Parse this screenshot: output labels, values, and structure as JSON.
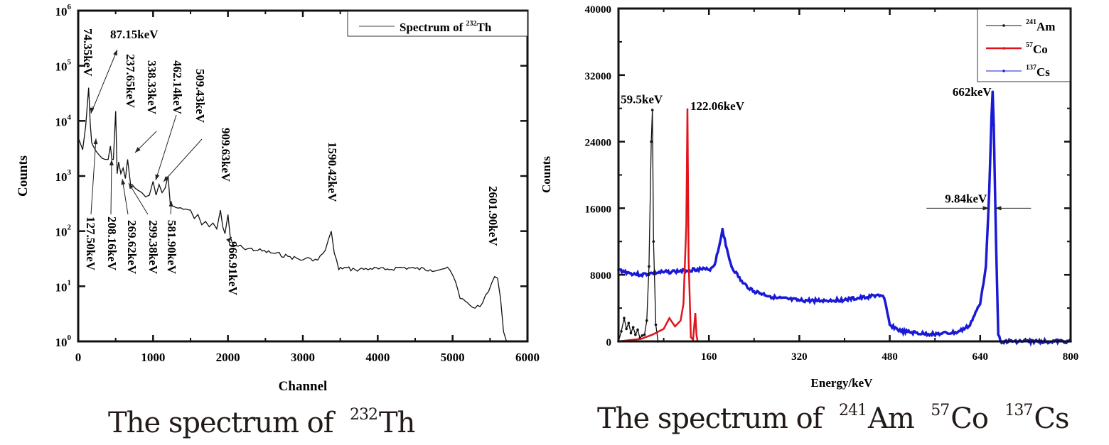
{
  "chart_data": [
    {
      "type": "line",
      "title": "Spectrum of 232Th",
      "caption": {
        "prefix": "The spectrum of",
        "isotope_mass": "232",
        "isotope_symbol": "Th"
      },
      "xlabel": "Channel",
      "ylabel": "Counts",
      "xlim": [
        0,
        6000
      ],
      "ylim": [
        1,
        1000000
      ],
      "yscale": "log",
      "grid": false,
      "xticks": [
        "0",
        "1000",
        "2000",
        "3000",
        "4000",
        "5000",
        "6000"
      ],
      "yticks": [
        {
          "base": "10",
          "exp": "0"
        },
        {
          "base": "10",
          "exp": "1"
        },
        {
          "base": "10",
          "exp": "2"
        },
        {
          "base": "10",
          "exp": "3"
        },
        {
          "base": "10",
          "exp": "4"
        },
        {
          "base": "10",
          "exp": "5"
        },
        {
          "base": "10",
          "exp": "6"
        }
      ],
      "legend": {
        "position": "top-right",
        "entries": [
          {
            "label_prefix": "Spectrum of ",
            "mass": "232",
            "symbol": "Th",
            "color": "#111111"
          }
        ]
      },
      "series": [
        {
          "name": "Spectrum of 232Th",
          "color": "#111111",
          "x": [
            0,
            60,
            100,
            140,
            160,
            180,
            200,
            240,
            280,
            320,
            360,
            400,
            430,
            450,
            470,
            500,
            520,
            540,
            570,
            600,
            630,
            660,
            700,
            720,
            760,
            800,
            850,
            900,
            950,
            1000,
            1040,
            1080,
            1120,
            1160,
            1200,
            1230,
            1250,
            1280,
            1300,
            1400,
            1500,
            1550,
            1600,
            1650,
            1700,
            1750,
            1800,
            1850,
            1900,
            1930,
            1960,
            2000,
            2030,
            2060,
            2080,
            2100,
            2200,
            2400,
            2600,
            2800,
            3000,
            3100,
            3200,
            3300,
            3380,
            3420,
            3480,
            3500,
            3700,
            3900,
            4100,
            4300,
            4500,
            4700,
            4900,
            4960,
            5040,
            5100,
            5200,
            5300,
            5400,
            5480,
            5560,
            5600,
            5640,
            5680,
            5720
          ],
          "y": [
            5000,
            3000,
            8000,
            40000,
            9000,
            4000,
            3500,
            2800,
            2400,
            2100,
            2000,
            2000,
            3500,
            2000,
            2000,
            15000,
            1100,
            1800,
            1100,
            1400,
            900,
            2000,
            700,
            700,
            600,
            550,
            500,
            420,
            450,
            800,
            450,
            700,
            500,
            600,
            1000,
            300,
            290,
            280,
            270,
            250,
            240,
            170,
            200,
            130,
            150,
            120,
            140,
            110,
            240,
            120,
            90,
            200,
            80,
            60,
            55,
            55,
            50,
            45,
            40,
            35,
            30,
            32,
            30,
            45,
            100,
            40,
            20,
            22,
            20,
            21,
            20,
            22,
            21,
            20,
            21,
            20,
            12,
            6,
            5,
            4,
            5,
            8,
            15,
            14,
            6,
            1.5,
            1
          ]
        }
      ],
      "annotations": [
        {
          "text": "74.35keV",
          "x": 150
        },
        {
          "text": "87.15keV",
          "x": 170
        },
        {
          "text": "127.50keV",
          "x": 230
        },
        {
          "text": "208.16keV",
          "x": 430
        },
        {
          "text": "237.65keV",
          "x": 500
        },
        {
          "text": "269.62keV",
          "x": 560
        },
        {
          "text": "299.38keV",
          "x": 620
        },
        {
          "text": "338.33keV",
          "x": 700
        },
        {
          "text": "462.14keV",
          "x": 980
        },
        {
          "text": "509.43keV",
          "x": 1080
        },
        {
          "text": "581.90keV",
          "x": 1220
        },
        {
          "text": "909.63keV",
          "x": 1930
        },
        {
          "text": "966.91keV",
          "x": 2060
        },
        {
          "text": "1590.42keV",
          "x": 3380
        },
        {
          "text": "2601.90keV",
          "x": 5560
        }
      ]
    },
    {
      "type": "line",
      "title": "Spectrum of 241Am 57Co 137Cs",
      "caption": {
        "prefix": "The spectrum of",
        "isotopes": [
          {
            "mass": "241",
            "symbol": "Am"
          },
          {
            "mass": "57",
            "symbol": "Co"
          },
          {
            "mass": "137",
            "symbol": "Cs"
          }
        ]
      },
      "xlabel": "Energy/keV",
      "ylabel": "Counts",
      "xlim": [
        0,
        800
      ],
      "ylim": [
        0,
        40000
      ],
      "grid": false,
      "xticks": [
        "160",
        "320",
        "480",
        "640",
        "800"
      ],
      "yticks": [
        "0",
        "8000",
        "16000",
        "24000",
        "32000",
        "40000"
      ],
      "legend": {
        "position": "top-right",
        "entries": [
          {
            "mass": "241",
            "symbol": "Am",
            "color": "#111111"
          },
          {
            "mass": "57",
            "symbol": "Co",
            "color": "#e0141a"
          },
          {
            "mass": "137",
            "symbol": "Cs",
            "color": "#1a1ad6"
          }
        ]
      },
      "series": [
        {
          "name": "241Am",
          "color": "#111111",
          "x": [
            0,
            5,
            10,
            14,
            18,
            22,
            26,
            30,
            34,
            38,
            42,
            46,
            50,
            54,
            58,
            60,
            62,
            66,
            70
          ],
          "y": [
            0,
            1200,
            2800,
            1500,
            2200,
            1000,
            1700,
            800,
            1400,
            400,
            700,
            800,
            2500,
            9000,
            24000,
            27800,
            12000,
            2000,
            0
          ]
        },
        {
          "name": "57Co",
          "color": "#e0141a",
          "x": [
            0,
            40,
            60,
            80,
            90,
            100,
            110,
            115,
            120,
            122,
            124,
            128,
            132,
            136,
            138,
            140,
            144,
            160,
            800
          ],
          "y": [
            0,
            300,
            800,
            1500,
            2800,
            1800,
            2500,
            4500,
            14000,
            28000,
            10000,
            500,
            200,
            3400,
            800,
            0,
            0,
            0,
            0
          ]
        },
        {
          "name": "137Cs",
          "color": "#1a1ad6",
          "x": [
            0,
            20,
            40,
            60,
            80,
            100,
            120,
            140,
            160,
            170,
            180,
            184,
            190,
            200,
            220,
            240,
            280,
            320,
            360,
            400,
            440,
            460,
            470,
            480,
            500,
            540,
            570,
            600,
            620,
            640,
            650,
            656,
            660,
            662,
            664,
            668,
            672,
            676,
            800
          ],
          "y": [
            8600,
            8200,
            8000,
            8200,
            8300,
            8400,
            8500,
            8700,
            8600,
            9200,
            12000,
            13500,
            11500,
            9000,
            7000,
            6000,
            5200,
            4900,
            4900,
            5000,
            5300,
            5600,
            5200,
            2000,
            1200,
            900,
            900,
            1100,
            1800,
            4500,
            9000,
            18000,
            27000,
            30000,
            26000,
            12000,
            800,
            0,
            0
          ]
        }
      ],
      "annotations": [
        {
          "text": "59.5keV",
          "x": 59.5
        },
        {
          "text": "122.06keV",
          "x": 122.06
        },
        {
          "text": "662keV",
          "x": 662
        },
        {
          "text": "9.84keV",
          "x": 662,
          "type": "FWHM arrows"
        }
      ]
    }
  ]
}
